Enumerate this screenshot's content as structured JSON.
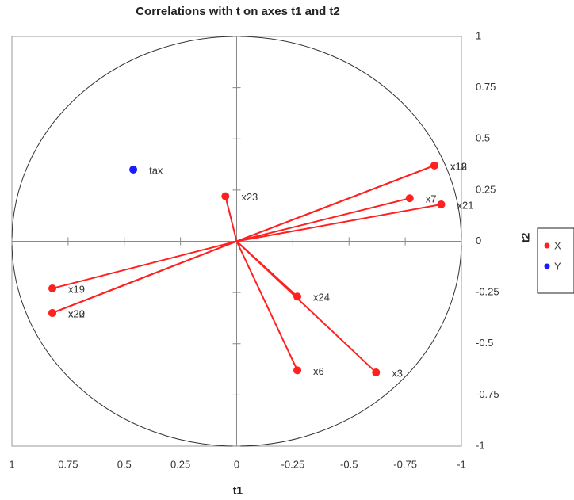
{
  "chart_data": {
    "type": "scatter",
    "title": "Correlations with t on axes t1 and t2",
    "x_label": "t1",
    "y_label": "t2",
    "xlim": [
      1,
      -1
    ],
    "ylim": [
      -1,
      1
    ],
    "xticks": [
      1,
      0.75,
      0.5,
      0.25,
      0,
      -0.25,
      -0.5,
      -0.75,
      -1
    ],
    "yticks": [
      1,
      0.75,
      0.5,
      0.25,
      0,
      -0.25,
      -0.5,
      -0.75,
      -1
    ],
    "series": [
      {
        "name": "X",
        "color": "#ff2020",
        "lines_to_origin": true,
        "labels": [
          "x18",
          "x12",
          "x7",
          "x21",
          "x23",
          "x19",
          "x20",
          "x22",
          "x24",
          "x6",
          "x3"
        ],
        "x": [
          -0.88,
          -0.88,
          -0.77,
          -0.91,
          0.05,
          0.82,
          0.82,
          0.82,
          -0.27,
          -0.27,
          -0.62
        ],
        "y": [
          0.37,
          0.37,
          0.21,
          0.18,
          0.22,
          -0.23,
          -0.35,
          -0.35,
          -0.27,
          -0.63,
          -0.64
        ]
      },
      {
        "name": "Y",
        "color": "#1a1aff",
        "lines_to_origin": false,
        "labels": [
          "tax"
        ],
        "x": [
          0.46
        ],
        "y": [
          0.35
        ]
      }
    ]
  }
}
